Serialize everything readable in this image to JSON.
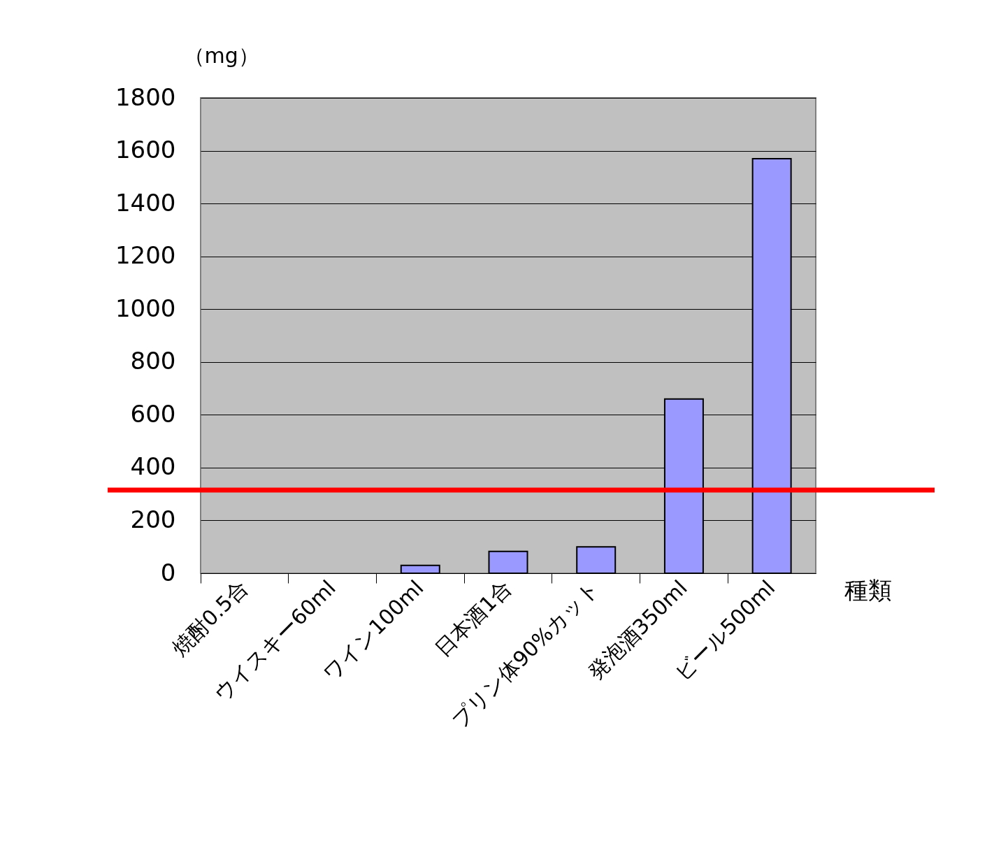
{
  "chart_data": {
    "type": "bar",
    "xlabel": "種類",
    "ylabel": "（mg）",
    "categories": [
      "焼酎0.5合",
      "ウイスキー60ml",
      "ワイン100ml",
      "日本酒1合",
      "プリン体90%カット",
      "発泡酒350ml",
      "ビール500ml"
    ],
    "values": [
      null,
      null,
      30,
      83,
      100,
      660,
      1570
    ],
    "color": "#9999ff",
    "ylim": [
      0,
      1800
    ],
    "yticks": [
      0,
      200,
      400,
      600,
      800,
      1000,
      1200,
      1400,
      1600,
      1800
    ],
    "grid": "y",
    "ref_lines": [
      {
        "axis": "y",
        "value": 315,
        "color": "#ff0000",
        "line_style": "solid"
      }
    ]
  }
}
